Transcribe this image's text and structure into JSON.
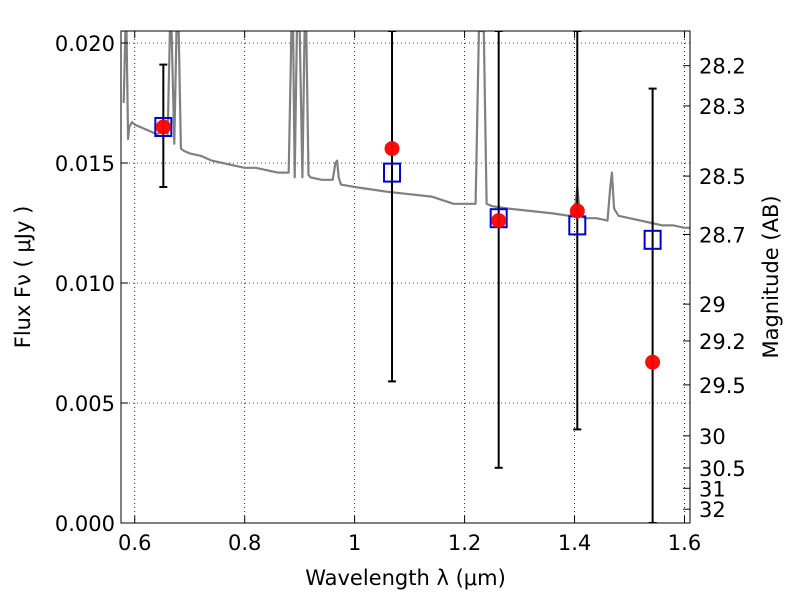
{
  "chart_data": {
    "type": "scatter",
    "xlabel": "Wavelength  λ (μm)",
    "ylabel": "Flux  Fν  ( μJy )",
    "y2label": "Magnitude (AB)",
    "xlim": [
      0.575,
      1.61
    ],
    "ylim": [
      0.0,
      0.0205
    ],
    "grid": true,
    "grid_style": "dotted",
    "xticks": [
      0.6,
      0.8,
      1.0,
      1.2,
      1.4,
      1.6
    ],
    "xtick_labels": [
      "0.6",
      "0.8",
      "1",
      "1.2",
      "1.4",
      "1.6"
    ],
    "yticks": [
      0.0,
      0.005,
      0.01,
      0.015,
      0.02
    ],
    "ytick_labels": [
      "0.000",
      "0.005",
      "0.010",
      "0.015",
      "0.020"
    ],
    "magnitude_ticks": [
      28.2,
      28.3,
      28.5,
      28.7,
      29,
      29.2,
      29.5,
      30,
      30.5,
      31,
      32
    ],
    "magnitude_tick_labels": [
      "28.2",
      "28.3",
      "28.5",
      "28.7",
      "29",
      "29.2",
      "29.5",
      "30",
      "30.5",
      "31",
      "32"
    ],
    "colors": {
      "model": "#808080",
      "observed": "#ff0000",
      "model_photometry": "#0000cc",
      "errorbar": "#000000"
    },
    "series": [
      {
        "role": "model-spectrum",
        "mark": "line",
        "x": [
          0.58,
          0.583,
          0.585,
          0.588,
          0.59,
          0.595,
          0.6,
          0.61,
          0.62,
          0.63,
          0.64,
          0.65,
          0.655,
          0.66,
          0.664,
          0.667,
          0.672,
          0.676,
          0.68,
          0.684,
          0.69,
          0.7,
          0.72,
          0.74,
          0.76,
          0.78,
          0.8,
          0.82,
          0.84,
          0.86,
          0.88,
          0.885,
          0.888,
          0.891,
          0.895,
          0.9,
          0.905,
          0.909,
          0.912,
          0.916,
          0.92,
          0.94,
          0.96,
          0.965,
          0.968,
          0.971,
          0.975,
          1.0,
          1.03,
          1.06,
          1.1,
          1.14,
          1.18,
          1.2,
          1.22,
          1.226,
          1.23,
          1.235,
          1.24,
          1.25,
          1.28,
          1.32,
          1.36,
          1.39,
          1.4,
          1.405,
          1.41,
          1.42,
          1.44,
          1.46,
          1.465,
          1.468,
          1.472,
          1.48,
          1.5,
          1.52,
          1.54,
          1.56,
          1.58,
          1.6,
          1.61
        ],
        "y": [
          0.0175,
          0.0205,
          0.0205,
          0.016,
          0.0165,
          0.0167,
          0.0166,
          0.0165,
          0.0164,
          0.0163,
          0.0162,
          0.0163,
          0.0163,
          0.0162,
          0.0205,
          0.0205,
          0.0158,
          0.0205,
          0.0205,
          0.0156,
          0.0155,
          0.0154,
          0.0153,
          0.0151,
          0.015,
          0.0149,
          0.0148,
          0.0148,
          0.0147,
          0.0146,
          0.0146,
          0.0205,
          0.0205,
          0.0144,
          0.0205,
          0.0205,
          0.0144,
          0.0205,
          0.0205,
          0.0145,
          0.0144,
          0.0143,
          0.0143,
          0.015,
          0.0151,
          0.0144,
          0.0141,
          0.014,
          0.0139,
          0.0138,
          0.0137,
          0.0136,
          0.0133,
          0.0133,
          0.0133,
          0.0205,
          0.0205,
          0.0205,
          0.0133,
          0.0132,
          0.0131,
          0.013,
          0.0129,
          0.0128,
          0.0129,
          0.014,
          0.0128,
          0.0127,
          0.0127,
          0.0126,
          0.014,
          0.0146,
          0.0131,
          0.0128,
          0.0127,
          0.0126,
          0.0125,
          0.0124,
          0.0124,
          0.0123,
          0.0123
        ]
      },
      {
        "role": "model-photometry",
        "mark": "open-square",
        "x": [
          0.652,
          1.068,
          1.262,
          1.405,
          1.542
        ],
        "y": [
          0.0165,
          0.0146,
          0.0127,
          0.0124,
          0.0118
        ]
      },
      {
        "role": "observed-photometry",
        "mark": "filled-circle",
        "x": [
          0.652,
          1.068,
          1.262,
          1.405,
          1.542
        ],
        "y": [
          0.0165,
          0.0156,
          0.0126,
          0.013,
          0.0067
        ],
        "yerr_low": [
          0.014,
          0.0059,
          0.0023,
          0.0039,
          0.0
        ],
        "yerr_high": [
          0.0191,
          0.0205,
          0.0205,
          0.0205,
          0.0181
        ]
      }
    ]
  }
}
